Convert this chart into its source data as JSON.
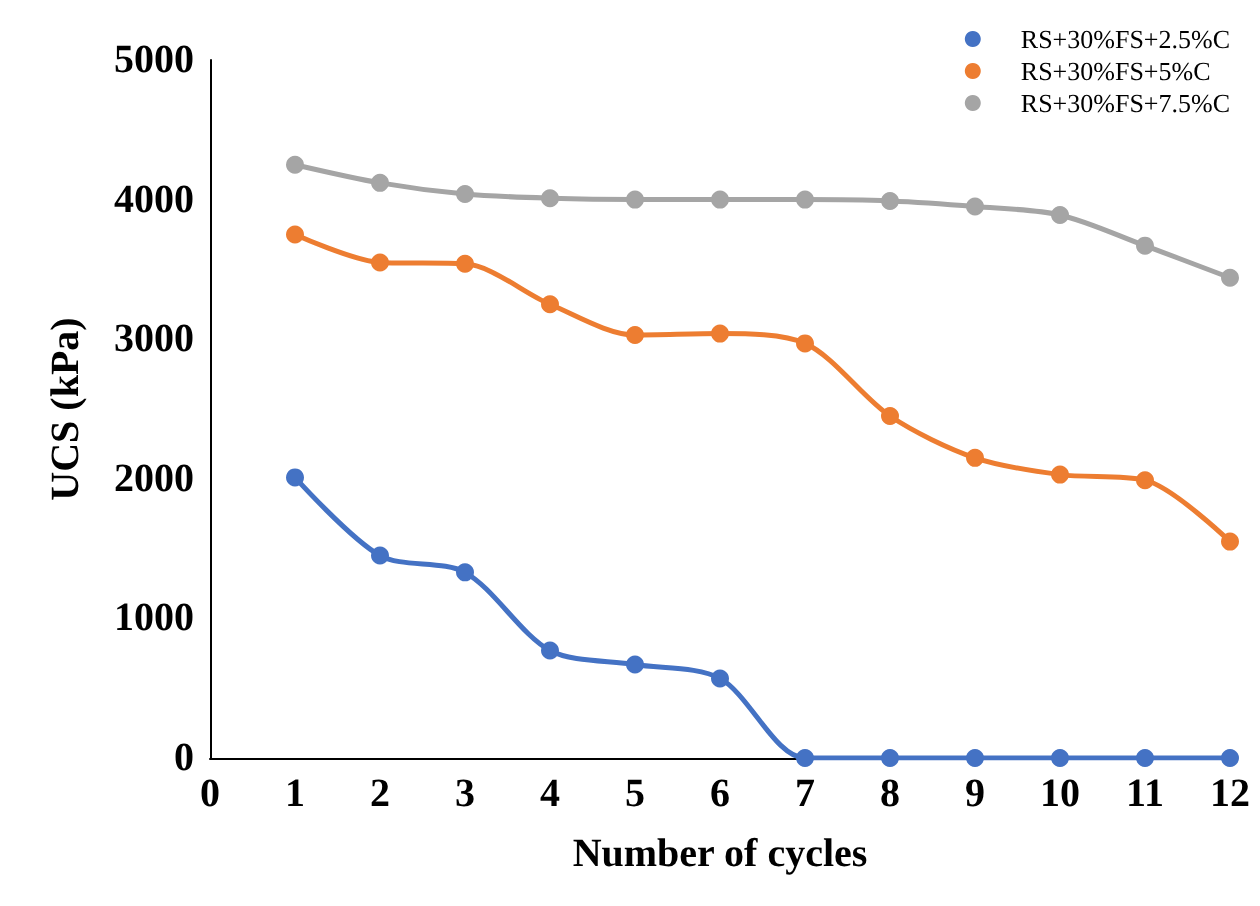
{
  "chart_data": {
    "type": "line",
    "xlabel": "Number of cycles",
    "ylabel": "UCS (kPa)",
    "x": [
      1,
      2,
      3,
      4,
      5,
      6,
      7,
      8,
      9,
      10,
      11,
      12
    ],
    "xlim": [
      0,
      12
    ],
    "xticks": [
      0,
      1,
      2,
      3,
      4,
      5,
      6,
      7,
      8,
      9,
      10,
      11,
      12
    ],
    "ylim": [
      0,
      5000
    ],
    "yticks": [
      0,
      1000,
      2000,
      3000,
      4000,
      5000
    ],
    "legend": "top right",
    "marker": "circle",
    "series": [
      {
        "name": "RS+30%FS+2.5%C",
        "color": "#4472c4",
        "values": [
          2010,
          1450,
          1330,
          770,
          670,
          570,
          0,
          0,
          0,
          0,
          0,
          0
        ]
      },
      {
        "name": "RS+30%FS+5%C",
        "color": "#ed7d31",
        "values": [
          3750,
          3550,
          3540,
          3250,
          3030,
          3040,
          2970,
          2450,
          2150,
          2030,
          1990,
          1550
        ]
      },
      {
        "name": "RS+30%FS+7.5%C",
        "color": "#a5a5a5",
        "values": [
          4250,
          4120,
          4040,
          4010,
          4000,
          4000,
          4000,
          3990,
          3950,
          3890,
          3670,
          3440
        ]
      }
    ]
  }
}
